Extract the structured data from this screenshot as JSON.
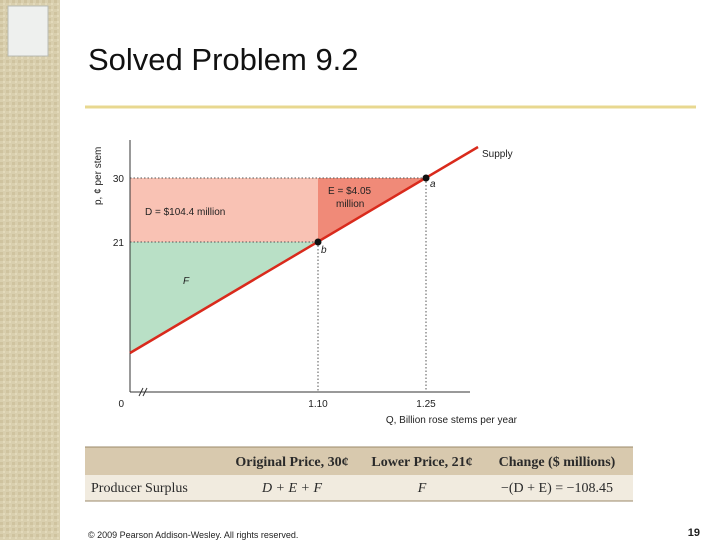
{
  "header": {
    "title": "Solved Problem 9.2"
  },
  "figure": {
    "y_axis_label": "p, ¢ per stem",
    "x_axis_label": "Q, Billion rose stems per year",
    "y_ticks": [
      "30",
      "21",
      "0"
    ],
    "x_ticks": [
      "1.10",
      "1.25"
    ],
    "curve_label": "Supply",
    "area_d": "D = $104.4 million",
    "area_e": [
      "E = $4.05",
      "million"
    ],
    "area_f": "F",
    "point_a": "a",
    "point_b": "b"
  },
  "table": {
    "header": [
      "Original Price, 30¢",
      "Lower Price, 21¢",
      "Change ($ millions)"
    ],
    "rows": [
      [
        "Producer Surplus",
        "D + E + F",
        "F",
        "−(D + E) = −108.45"
      ]
    ]
  },
  "footer": {
    "copyright": "© 2009 Pearson Addison-Wesley. All rights reserved.",
    "page": "19"
  }
}
